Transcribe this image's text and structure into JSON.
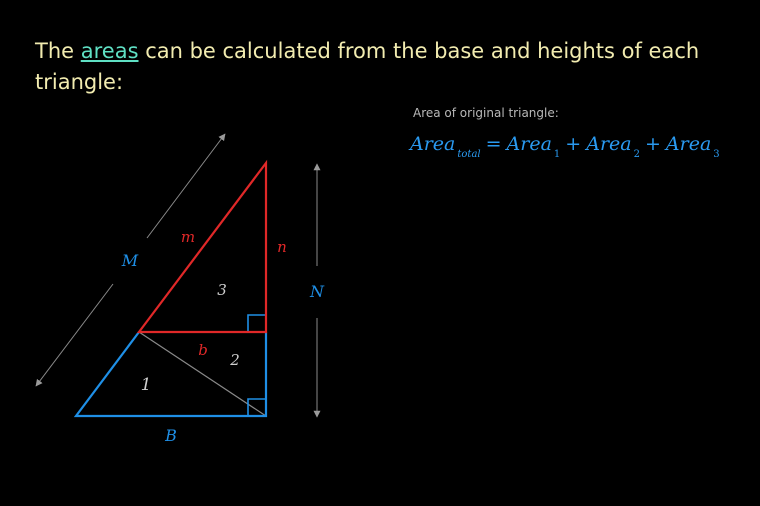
{
  "heading": {
    "before": "The ",
    "link": "areas",
    "after": " can be calculated from the base and heights of each triangle:"
  },
  "caption": "Area of original triangle:",
  "formula": {
    "term": "Area",
    "sub_total": "total",
    "equals": "=",
    "sub_1": "1",
    "plus": "+",
    "sub_2": "2",
    "sub_3": "3"
  },
  "diagram": {
    "labels": {
      "M": "M",
      "m": "m",
      "n": "n",
      "N": "N",
      "b": "b",
      "B": "B",
      "region_1": "1",
      "region_2": "2",
      "region_3": "3"
    },
    "colors": {
      "red": "#e02828",
      "blue": "#1f8fe6",
      "gray_line": "#8a8a8a",
      "gray_label": "#cfcfcf",
      "background": "#000000",
      "heading_text": "#f2ecb0",
      "link": "#5fe0c4"
    }
  }
}
